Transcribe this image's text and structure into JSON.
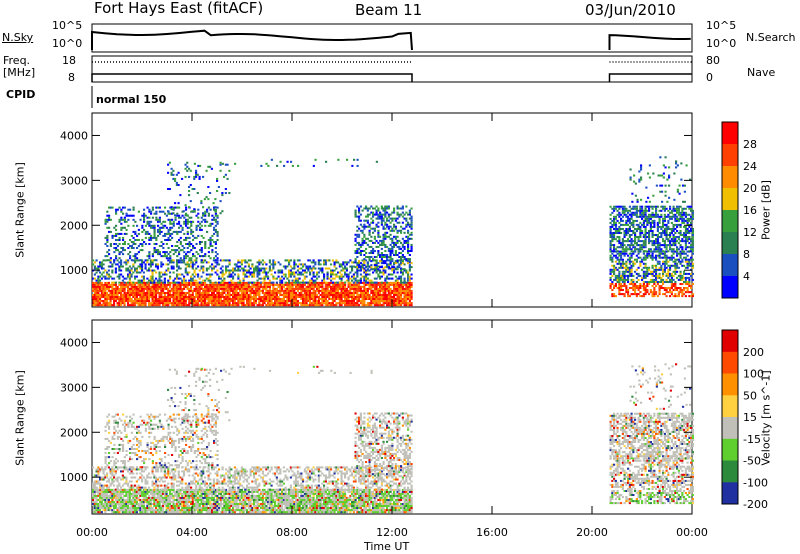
{
  "header": {
    "title": "Fort Hays East (fitACF)",
    "beam": "Beam 11",
    "date": "03/Jun/2010"
  },
  "params": {
    "nsky_label": "N.Sky",
    "nsky_ticks": [
      "10^5",
      "10^0"
    ],
    "nsearch_label": "N.Search",
    "freq_label": "Freq.",
    "freq_unit": "[MHz]",
    "freq_ticks": [
      "18",
      "8"
    ],
    "nave_label": "Nave",
    "nave_ticks": [
      "80",
      "0"
    ],
    "cpid_label": "CPID",
    "cpid_value": "normal 150"
  },
  "colors": {
    "power": [
      "#0000ff",
      "#1a4fc0",
      "#2a8050",
      "#37a03c",
      "#f0c000",
      "#ff8c00",
      "#ff4000",
      "#ff0000"
    ],
    "velocity": [
      "#2030a0",
      "#2b8a3c",
      "#5fcf30",
      "#c0c0b8",
      "#ffd040",
      "#ff9000",
      "#ff4a00",
      "#e00000"
    ]
  },
  "chart_data": [
    {
      "type": "heatmap",
      "panel": "power",
      "ylabel": "Slant Range [km]",
      "ylim": [
        180,
        4500
      ],
      "yticks": [
        "4000",
        "3000",
        "2000",
        "1000"
      ],
      "colorbar_label": "Power [dB]",
      "colorbar_ticks": [
        "28",
        "24",
        "20",
        "16",
        "12",
        "8",
        "4"
      ],
      "range": [
        0,
        30
      ],
      "data_gaps_hours": [
        [
          12.8,
          20.7
        ]
      ]
    },
    {
      "type": "heatmap",
      "panel": "velocity",
      "ylabel": "Slant Range [km]",
      "ylim": [
        180,
        4500
      ],
      "yticks": [
        "4000",
        "3000",
        "2000",
        "1000"
      ],
      "colorbar_label": "Velocity [m s^-1]",
      "colorbar_ticks": [
        "200",
        "100",
        "50",
        "15",
        "-15",
        "-50",
        "-100",
        "-200"
      ],
      "range": [
        -250,
        250
      ],
      "data_gaps_hours": [
        [
          12.8,
          20.7
        ]
      ]
    }
  ],
  "xaxis": {
    "label": "Time UT",
    "ticks": [
      "00:00",
      "04:00",
      "08:00",
      "12:00",
      "16:00",
      "20:00",
      "00:00"
    ],
    "range_hours": [
      0,
      24
    ]
  }
}
